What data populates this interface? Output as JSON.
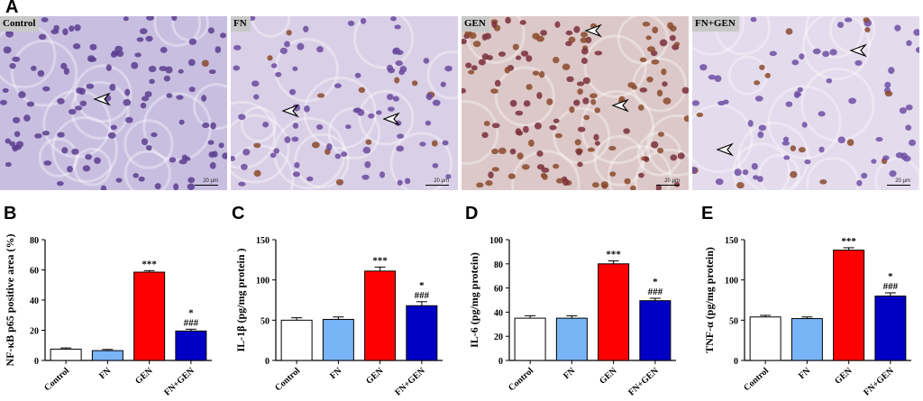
{
  "figure": {
    "panel_labels": [
      "A",
      "B",
      "C",
      "D",
      "E"
    ],
    "micrographs": [
      {
        "label": "Control",
        "scale": "20 µm",
        "arrowheads": 1
      },
      {
        "label": "FN",
        "scale": "20 µm",
        "arrowheads": 2
      },
      {
        "label": "GEN",
        "scale": "20 µm",
        "arrowheads": 2
      },
      {
        "label": "FN+GEN",
        "scale": "20 µm",
        "arrowheads": 2
      }
    ]
  },
  "colors": {
    "Control": "#ffffff",
    "FN": "#79b4f6",
    "GEN": "#ff0000",
    "FN+GEN": "#0000c4"
  },
  "chart_data": [
    {
      "type": "bar",
      "panel": "B",
      "categories": [
        "Control",
        "FN",
        "GEN",
        "FN+GEN"
      ],
      "values": [
        7.5,
        6.5,
        58.5,
        19.5
      ],
      "errors": [
        0.8,
        0.8,
        1.0,
        1.2
      ],
      "ylabel": "NF-κB p65  positive area (%)",
      "ylim": [
        0,
        80
      ],
      "yticks": [
        "0",
        "20",
        "40",
        "60",
        "80"
      ],
      "annotations": [
        "",
        "",
        "***",
        "*\n###"
      ]
    },
    {
      "type": "bar",
      "panel": "C",
      "categories": [
        "Control",
        "FN",
        "GEN",
        "FN+GEN"
      ],
      "values": [
        50,
        51,
        111,
        68
      ],
      "errors": [
        3,
        3,
        5,
        5
      ],
      "ylabel": "IL-1β (pg/mg protein )",
      "ylim": [
        0,
        150
      ],
      "yticks": [
        "0",
        "50",
        "100",
        "150"
      ],
      "annotations": [
        "",
        "",
        "***",
        "*\n###"
      ]
    },
    {
      "type": "bar",
      "panel": "D",
      "categories": [
        "Control",
        "FN",
        "GEN",
        "FN+GEN"
      ],
      "values": [
        35,
        35,
        80,
        49.5
      ],
      "errors": [
        2,
        2,
        2.5,
        2
      ],
      "ylabel": "IL-6 (pg/mg protein)",
      "ylim": [
        0,
        100
      ],
      "yticks": [
        "0",
        "20",
        "40",
        "60",
        "80",
        "100"
      ],
      "annotations": [
        "",
        "",
        "***",
        "*\n###"
      ]
    },
    {
      "type": "bar",
      "panel": "E",
      "categories": [
        "Control",
        "FN",
        "GEN",
        "FN+GEN"
      ],
      "values": [
        54,
        52,
        137,
        80
      ],
      "errors": [
        2,
        2,
        3,
        4
      ],
      "ylabel": "TNF-α (pg/mg protein)",
      "ylim": [
        0,
        150
      ],
      "yticks": [
        "0",
        "50",
        "100",
        "150"
      ],
      "annotations": [
        "",
        "",
        "***",
        "*\n###"
      ]
    }
  ]
}
